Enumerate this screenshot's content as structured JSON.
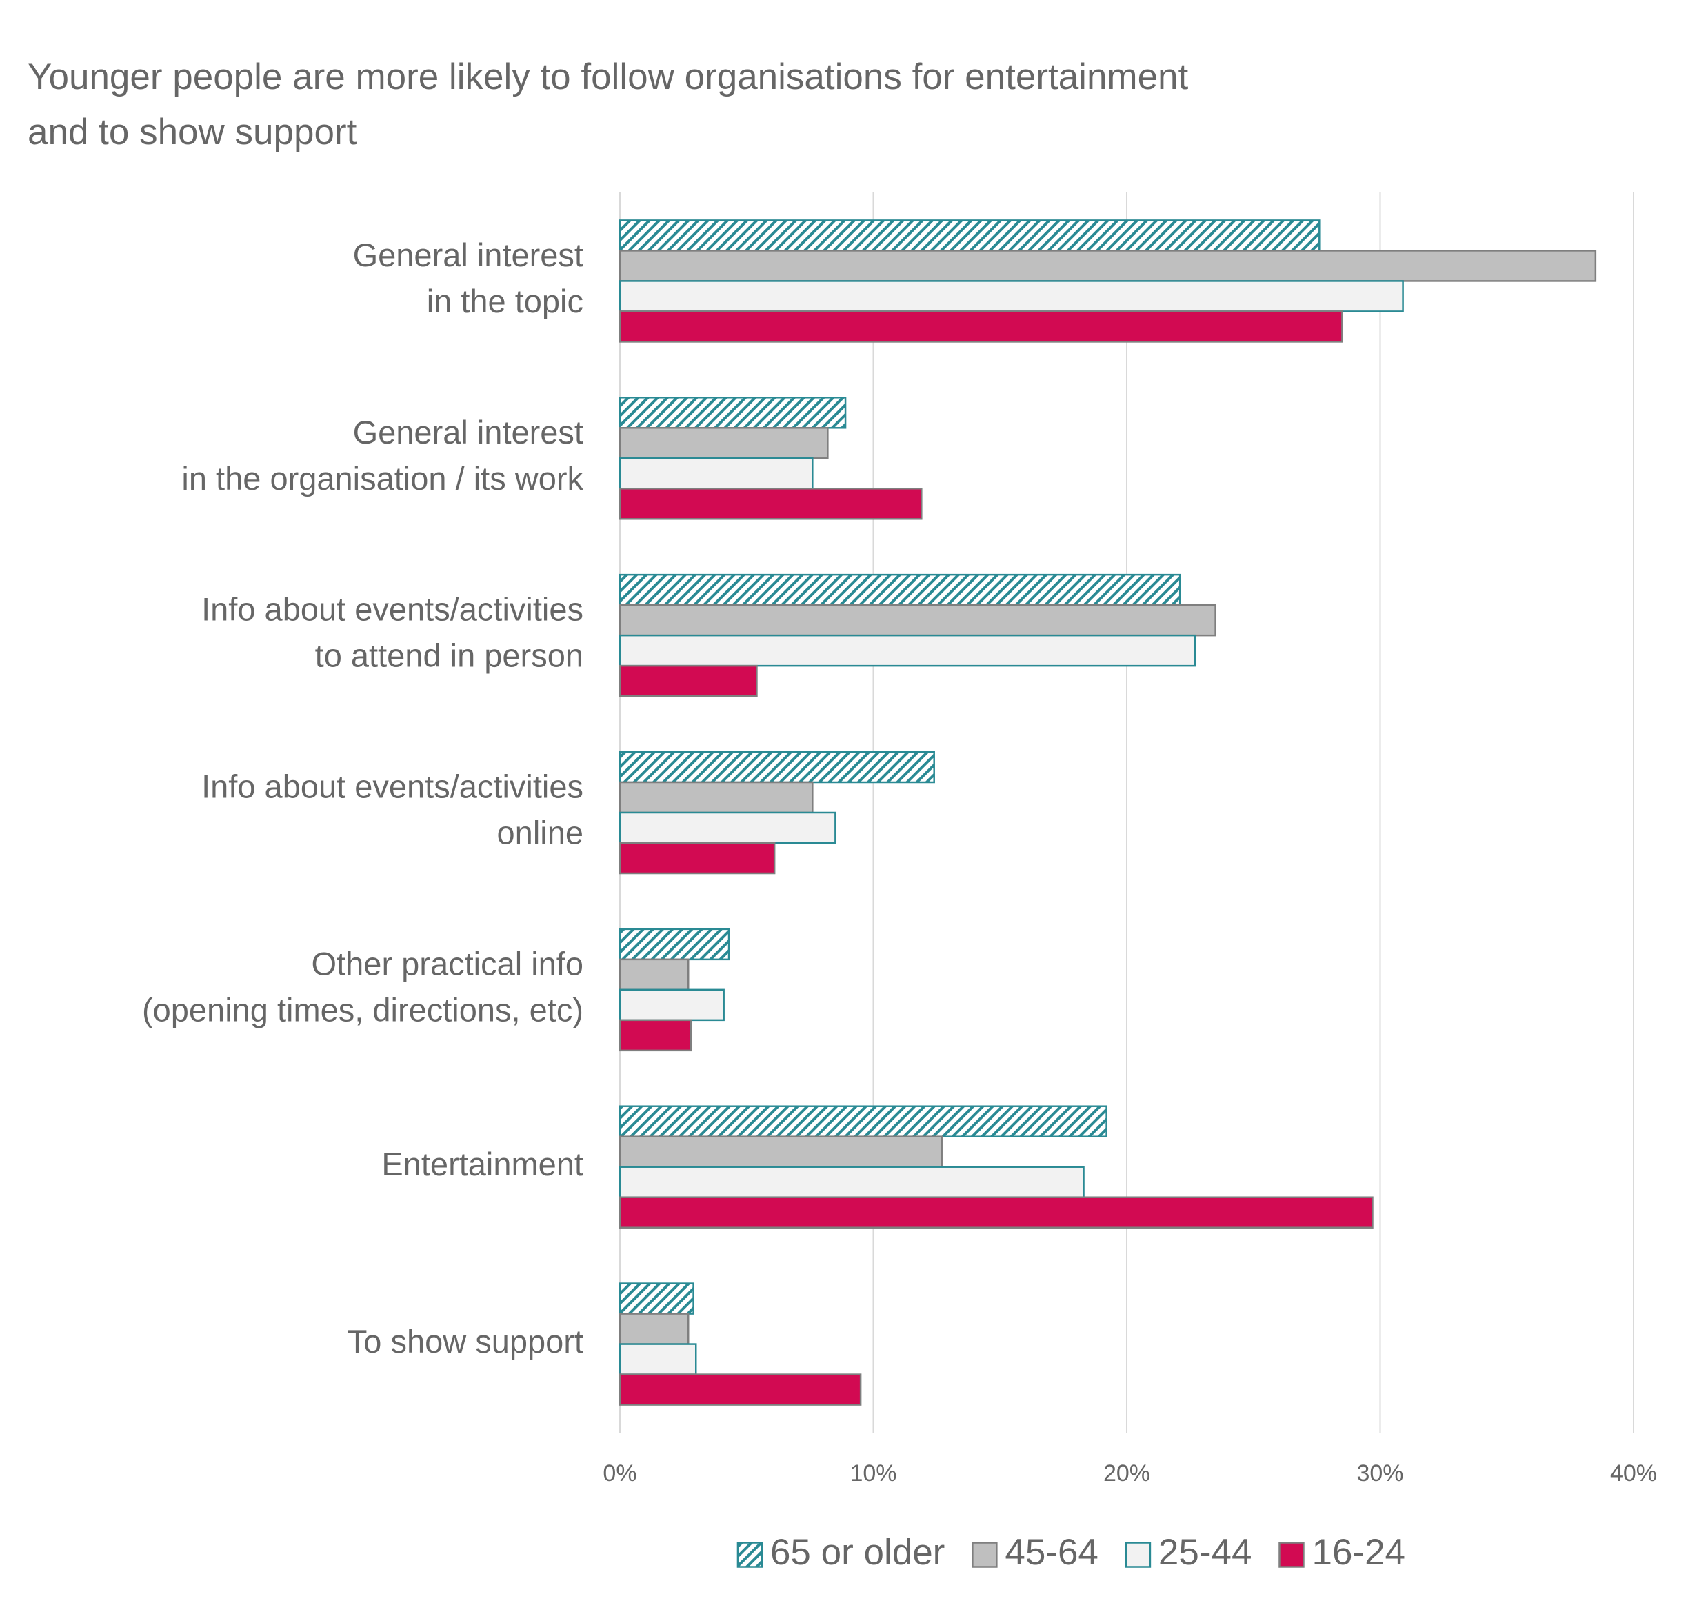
{
  "chart_data": {
    "type": "barh",
    "title": "Younger people are more likely to follow organisations for entertainment\nand to show support",
    "categories": [
      "General interest\nin the topic",
      "General interest\nin the organisation / its work",
      "Info about events/activities\nto attend in person",
      "Info about events/activities\nonline",
      "Other practical info\n(opening times, directions, etc)",
      "Entertainment",
      "To show support"
    ],
    "series": [
      {
        "name": "65 or older",
        "color": "#2a8a94",
        "pattern": "hatch",
        "values": [
          27.6,
          8.9,
          22.1,
          12.4,
          4.3,
          19.2,
          2.9
        ]
      },
      {
        "name": "45-64",
        "color": "#bfbfbf",
        "edgecolor": "#7f7f7f",
        "values": [
          38.5,
          8.2,
          23.5,
          7.6,
          2.7,
          12.7,
          2.7
        ]
      },
      {
        "name": "25-44",
        "color": "#f2f2f2",
        "edgecolor": "#2a8a94",
        "values": [
          30.9,
          7.6,
          22.7,
          8.5,
          4.1,
          18.3,
          3.0
        ]
      },
      {
        "name": "16-24",
        "color": "#d20a52",
        "edgecolor": "#7f7f7f",
        "values": [
          28.5,
          11.9,
          5.4,
          6.1,
          2.8,
          29.7,
          9.5
        ]
      }
    ],
    "xlim": [
      0,
      40
    ],
    "xticks": [
      {
        "value": 0,
        "label": "0%"
      },
      {
        "value": 10,
        "label": "10%"
      },
      {
        "value": 20,
        "label": "20%"
      },
      {
        "value": 30,
        "label": "30%"
      },
      {
        "value": 40,
        "label": "40%"
      }
    ],
    "grid": true,
    "legend": "bottom"
  }
}
